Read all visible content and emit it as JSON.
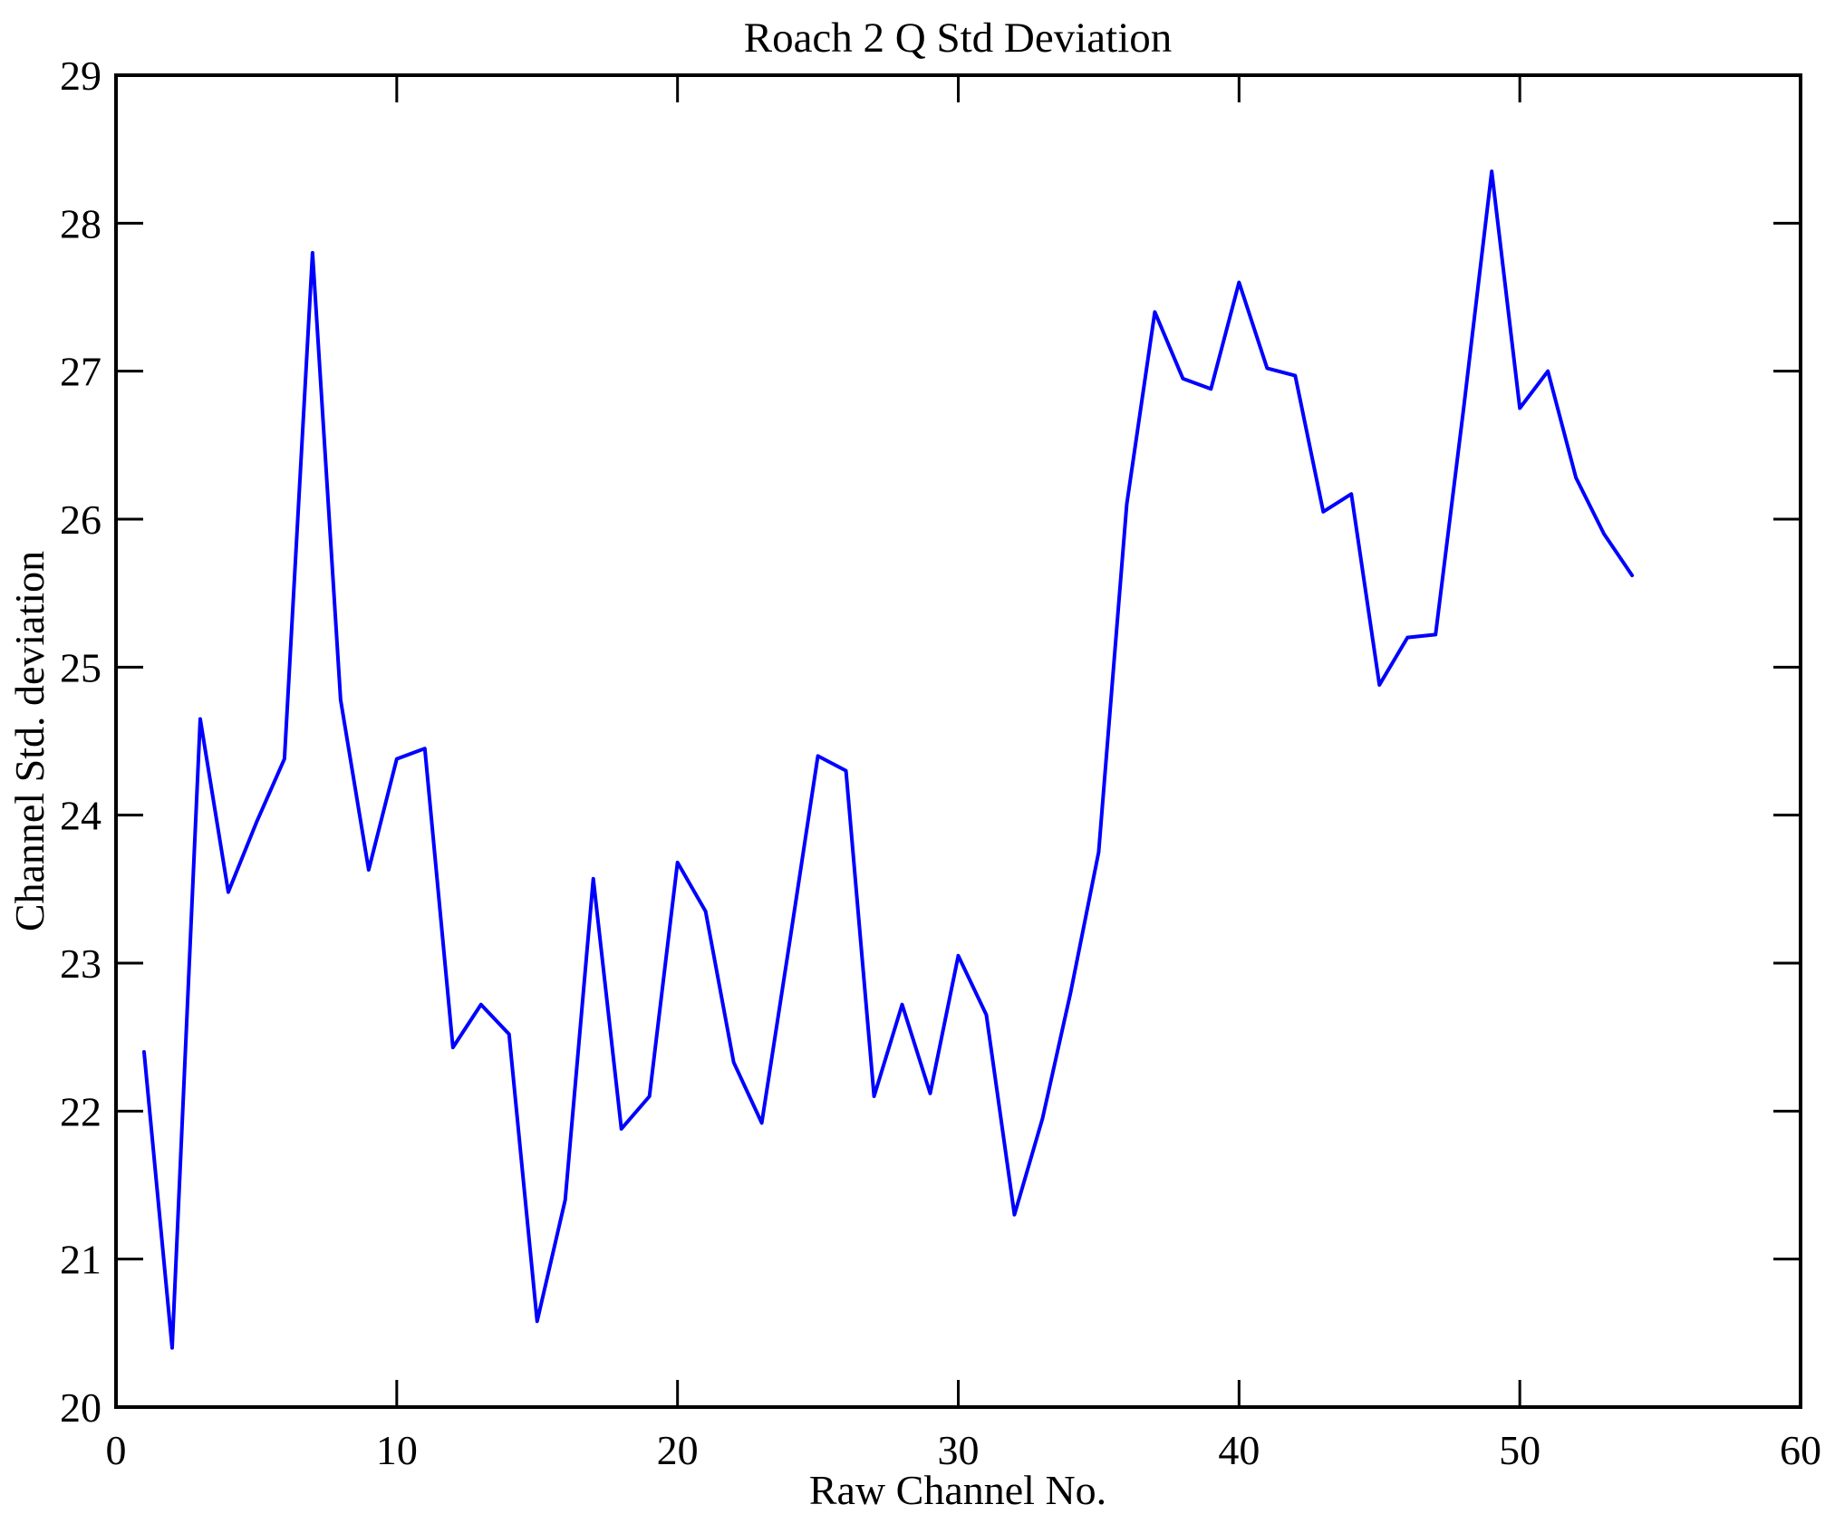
{
  "figure": {
    "background_color": "#ffffff",
    "axis_color": "#000000"
  },
  "chart_data": {
    "type": "line",
    "title": "Roach 2 Q Std Deviation",
    "xlabel": "Raw Channel No.",
    "ylabel": "Channel Std. deviation",
    "xlim": [
      0,
      60
    ],
    "ylim": [
      20,
      29
    ],
    "xticks": [
      0,
      10,
      20,
      30,
      40,
      50,
      60
    ],
    "yticks": [
      20,
      21,
      22,
      23,
      24,
      25,
      26,
      27,
      28,
      29
    ],
    "grid": false,
    "legend": "none",
    "line_color": "#0000ff",
    "series": [
      {
        "name": "Channel Std deviation",
        "x": [
          1,
          2,
          3,
          4,
          5,
          6,
          7,
          8,
          9,
          10,
          11,
          12,
          13,
          14,
          15,
          16,
          17,
          18,
          19,
          20,
          21,
          22,
          23,
          24,
          25,
          26,
          27,
          28,
          29,
          30,
          31,
          32,
          33,
          34,
          35,
          36,
          37,
          38,
          39,
          40,
          41,
          42,
          43,
          44,
          45,
          46,
          47,
          48,
          49,
          50,
          51,
          52,
          53,
          54
        ],
        "y": [
          22.4,
          20.4,
          24.65,
          23.48,
          23.95,
          24.38,
          27.8,
          24.78,
          23.63,
          24.38,
          24.45,
          22.43,
          22.72,
          22.52,
          20.58,
          21.4,
          23.57,
          21.88,
          22.1,
          23.68,
          23.35,
          22.33,
          21.92,
          23.15,
          24.4,
          24.3,
          22.1,
          22.72,
          22.12,
          23.05,
          22.65,
          21.3,
          21.95,
          22.8,
          23.75,
          26.1,
          27.4,
          26.95,
          26.88,
          27.6,
          27.02,
          26.97,
          26.05,
          26.17,
          24.88,
          25.2,
          25.22,
          26.75,
          28.35,
          26.75,
          27.0,
          26.28,
          25.9,
          25.62
        ]
      }
    ]
  }
}
